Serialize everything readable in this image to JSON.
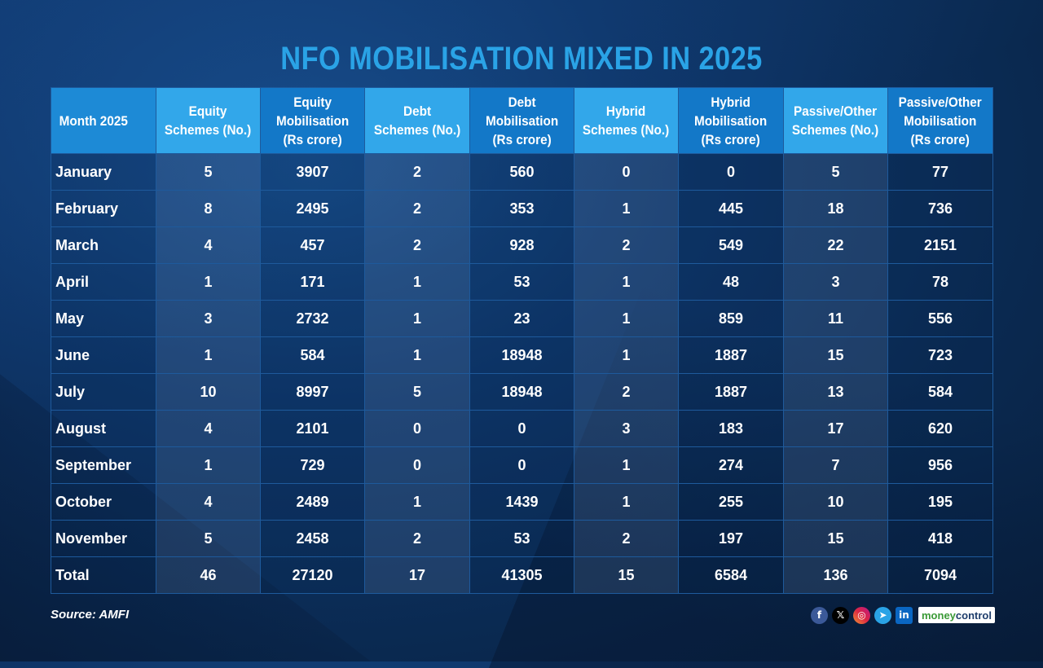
{
  "title": "NFO MOBILISATION MIXED IN 2025",
  "source": "Source: AMFI",
  "brand": {
    "part1": "money",
    "part2": "control"
  },
  "social_icons": [
    "facebook-icon",
    "x-icon",
    "instagram-icon",
    "telegram-icon",
    "linkedin-icon"
  ],
  "colors": {
    "title": "#2aa3e6",
    "header_light": "#32a7ea",
    "header_dark": "#1378c8",
    "background": "#0e3568"
  },
  "chart_data": {
    "type": "table",
    "columns": [
      [
        "Month 2025"
      ],
      [
        "Equity",
        "Schemes (No.)"
      ],
      [
        "Equity",
        "Mobilisation",
        "(Rs crore)"
      ],
      [
        "Debt",
        "Schemes (No.)"
      ],
      [
        "Debt",
        "Mobilisation",
        "(Rs crore)"
      ],
      [
        "Hybrid",
        "Schemes (No.)"
      ],
      [
        "Hybrid",
        "Mobilisation",
        "(Rs crore)"
      ],
      [
        "Passive/Other",
        "Schemes (No.)"
      ],
      [
        "Passive/Other",
        "Mobilisation",
        "(Rs crore)"
      ]
    ],
    "rows": [
      [
        "January",
        "5",
        "3907",
        "2",
        "560",
        "0",
        "0",
        "5",
        "77"
      ],
      [
        "February",
        "8",
        "2495",
        "2",
        "353",
        "1",
        "445",
        "18",
        "736"
      ],
      [
        "March",
        "4",
        "457",
        "2",
        "928",
        "2",
        "549",
        "22",
        "2151"
      ],
      [
        "April",
        "1",
        "171",
        "1",
        "53",
        "1",
        "48",
        "3",
        "78"
      ],
      [
        "May",
        "3",
        "2732",
        "1",
        "23",
        "1",
        "859",
        "11",
        "556"
      ],
      [
        "June",
        "1",
        "584",
        "1",
        "18948",
        "1",
        "1887",
        "15",
        "723"
      ],
      [
        "July",
        "10",
        "8997",
        "5",
        "18948",
        "2",
        "1887",
        "13",
        "584"
      ],
      [
        "August",
        "4",
        "2101",
        "0",
        "0",
        "3",
        "183",
        "17",
        "620"
      ],
      [
        "September",
        "1",
        "729",
        "0",
        "0",
        "1",
        "274",
        "7",
        "956"
      ],
      [
        "October",
        "4",
        "2489",
        "1",
        "1439",
        "1",
        "255",
        "10",
        "195"
      ],
      [
        "November",
        "5",
        "2458",
        "2",
        "53",
        "2",
        "197",
        "15",
        "418"
      ]
    ],
    "total": [
      "Total",
      "46",
      "27120",
      "17",
      "41305",
      "15",
      "6584",
      "136",
      "7094"
    ]
  }
}
